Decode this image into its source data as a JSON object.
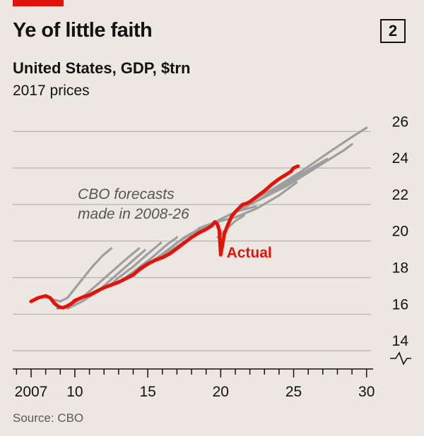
{
  "header": {
    "title": "Ye of little faith",
    "badge": "2",
    "subtitle": "United States, GDP, $trn",
    "unit": "2017 prices"
  },
  "source": "Source: CBO",
  "colors": {
    "actual": "#e3120b",
    "forecast": "#9e9e9e",
    "grid": "#b3b0ab",
    "axis": "#121212"
  },
  "chart_data": {
    "type": "line",
    "title": "Ye of little faith",
    "subtitle": "United States, GDP, $trn",
    "ylabel": "2017 prices",
    "xlim": [
      2006.5,
      2030
    ],
    "ylim": [
      13,
      26
    ],
    "y_ticks": [
      14,
      16,
      18,
      20,
      22,
      24,
      26
    ],
    "x_tick_labels": [
      {
        "x": 2007,
        "label": "2007"
      },
      {
        "x": 2010,
        "label": "10"
      },
      {
        "x": 2015,
        "label": "15"
      },
      {
        "x": 2020,
        "label": "20"
      },
      {
        "x": 2025,
        "label": "25"
      },
      {
        "x": 2030,
        "label": "30"
      }
    ],
    "broken_axis": true,
    "grid": true,
    "annotations": [
      {
        "text": "CBO forecasts\nmade in 2008-26",
        "x": 2010.2,
        "y": 22.3
      },
      {
        "text": "Actual",
        "x": 2020.4,
        "y": 19.1
      }
    ],
    "series": [
      {
        "name": "Actual",
        "x": [
          2007.0,
          2007.5,
          2008.0,
          2008.3,
          2008.6,
          2008.9,
          2009.2,
          2009.5,
          2009.8,
          2010.0,
          2010.3,
          2010.6,
          2011.0,
          2011.5,
          2012.0,
          2012.5,
          2013.0,
          2013.5,
          2014.0,
          2014.5,
          2015.0,
          2015.5,
          2016.0,
          2016.5,
          2017.0,
          2017.5,
          2018.0,
          2018.5,
          2019.0,
          2019.4,
          2019.6,
          2019.75,
          2019.9,
          2020.0,
          2020.25,
          2020.5,
          2020.75,
          2021.0,
          2021.25,
          2021.5,
          2021.75,
          2022.0,
          2022.5,
          2023.0,
          2023.5,
          2024.0,
          2024.5,
          2024.8,
          2025.0,
          2025.3
        ],
        "values": [
          16.7,
          16.9,
          17.0,
          16.9,
          16.6,
          16.4,
          16.35,
          16.45,
          16.6,
          16.75,
          16.85,
          16.95,
          17.05,
          17.25,
          17.45,
          17.6,
          17.75,
          17.95,
          18.15,
          18.5,
          18.75,
          18.95,
          19.1,
          19.3,
          19.6,
          19.9,
          20.2,
          20.45,
          20.65,
          20.85,
          21.05,
          20.95,
          20.6,
          19.25,
          20.4,
          20.9,
          21.35,
          21.6,
          21.8,
          22.0,
          22.05,
          22.15,
          22.45,
          22.75,
          23.1,
          23.4,
          23.65,
          23.8,
          24.0,
          24.1
        ]
      },
      {
        "name": "",
        "x": [
          2007.0,
          2007.6,
          2008.1,
          2008.5,
          2009.0,
          2009.5,
          2010.0,
          2010.6,
          2011.2,
          2011.9,
          2012.5
        ],
        "values": [
          16.7,
          16.9,
          17.0,
          16.8,
          16.7,
          16.9,
          17.4,
          18.0,
          18.6,
          19.2,
          19.6
        ]
      },
      {
        "name": "",
        "x": [
          2008.8,
          2009.5,
          2010.5,
          2011.5,
          2012.5,
          2013.5,
          2014.4
        ],
        "values": [
          16.3,
          16.4,
          16.9,
          17.6,
          18.3,
          19.0,
          19.6
        ]
      },
      {
        "name": "",
        "x": [
          2009.5,
          2010.5,
          2011.5,
          2012.5,
          2013.5,
          2014.8
        ],
        "values": [
          16.3,
          16.7,
          17.2,
          17.9,
          18.6,
          19.5
        ]
      },
      {
        "name": "",
        "x": [
          2012.3,
          2013.0,
          2014.0,
          2015.0,
          2015.9
        ],
        "values": [
          17.5,
          18.0,
          18.6,
          19.3,
          19.9
        ]
      },
      {
        "name": "",
        "x": [
          2013.3,
          2014.3,
          2015.3,
          2016.3,
          2017.0
        ],
        "values": [
          17.9,
          18.5,
          19.1,
          19.8,
          20.2
        ]
      },
      {
        "name": "",
        "x": [
          2014.5,
          2015.5,
          2016.5,
          2017.5,
          2018.6
        ],
        "values": [
          18.4,
          19.0,
          19.6,
          20.2,
          20.7
        ]
      },
      {
        "name": "",
        "x": [
          2015.6,
          2016.6,
          2017.6,
          2018.6,
          2019.4
        ],
        "values": [
          19.0,
          19.5,
          20.0,
          20.5,
          20.8
        ]
      },
      {
        "name": "",
        "x": [
          2016.8,
          2018.0,
          2019.5,
          2021.0,
          2022.4
        ],
        "values": [
          19.8,
          20.4,
          21.0,
          21.6,
          21.9
        ]
      },
      {
        "name": "",
        "x": [
          2018.5,
          2019.5,
          2021.0,
          2022.5,
          2024.0,
          2025.2
        ],
        "values": [
          20.7,
          21.0,
          21.3,
          21.8,
          22.5,
          23.2
        ]
      },
      {
        "name": "",
        "x": [
          2021.0,
          2022.5,
          2024.0,
          2025.5,
          2027.0
        ],
        "values": [
          21.6,
          22.2,
          22.9,
          23.6,
          24.3
        ]
      },
      {
        "name": "",
        "x": [
          2021.5,
          2023.0,
          2024.5,
          2026.0,
          2027.3
        ],
        "values": [
          21.9,
          22.6,
          23.2,
          23.9,
          24.5
        ]
      },
      {
        "name": "",
        "x": [
          2022.5,
          2024.5,
          2026.5,
          2028.5,
          2029.0
        ],
        "values": [
          22.2,
          23.0,
          24.0,
          25.0,
          25.3
        ]
      },
      {
        "name": "",
        "x": [
          2023.5,
          2025.5,
          2027.5,
          2029.0,
          2030.0
        ],
        "values": [
          22.8,
          23.8,
          24.9,
          25.7,
          26.2
        ]
      },
      {
        "name": "",
        "x": [
          2019.8,
          2020.3,
          2021.0,
          2021.6
        ],
        "values": [
          20.2,
          20.6,
          21.1,
          21.4
        ]
      }
    ]
  }
}
